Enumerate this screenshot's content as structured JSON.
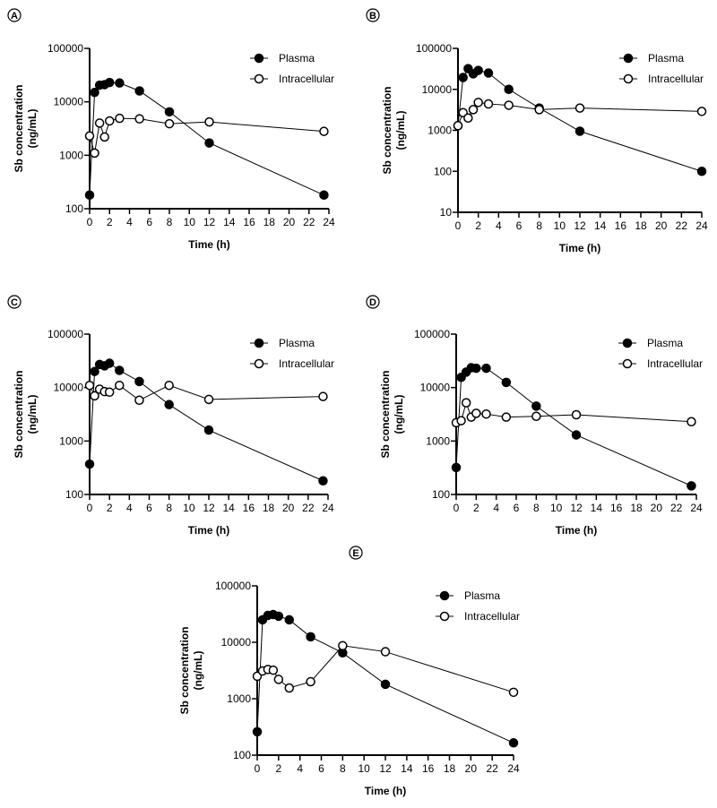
{
  "chart_data": [
    {
      "type": "line",
      "panel": "A",
      "xlabel": "Time (h)",
      "ylabel": [
        "Sb concentration",
        "(ng/mL)"
      ],
      "yscale": "log",
      "ylim": [
        100,
        100000
      ],
      "yticks": [
        "100",
        "1000",
        "10000",
        "100000"
      ],
      "xlim": [
        0,
        24
      ],
      "xticks": [
        "0",
        "2",
        "4",
        "6",
        "8",
        "10",
        "12",
        "14",
        "16",
        "18",
        "20",
        "22",
        "24"
      ],
      "legend": "top-right",
      "series": [
        {
          "name": "Plasma",
          "marker": "filled",
          "x": [
            0,
            0.5,
            1,
            1.5,
            2,
            3,
            5,
            8,
            12,
            23.5
          ],
          "y": [
            180,
            15000,
            20500,
            21000,
            23000,
            22500,
            16000,
            6500,
            1700,
            180
          ]
        },
        {
          "name": "Intracellular",
          "marker": "open",
          "x": [
            0,
            0.5,
            1,
            1.5,
            2,
            3,
            5,
            8,
            12,
            23.5
          ],
          "y": [
            2300,
            1100,
            4000,
            2200,
            4400,
            4900,
            4800,
            3900,
            4200,
            2800
          ]
        }
      ]
    },
    {
      "type": "line",
      "panel": "B",
      "xlabel": "Time (h)",
      "ylabel": [
        "Sb concentration",
        "(ng/mL)"
      ],
      "yscale": "log",
      "ylim": [
        10,
        100000
      ],
      "yticks": [
        "10",
        "100",
        "1000",
        "10000",
        "100000"
      ],
      "xlim": [
        0,
        24
      ],
      "xticks": [
        "0",
        "2",
        "4",
        "6",
        "8",
        "10",
        "12",
        "14",
        "16",
        "18",
        "20",
        "22",
        "24"
      ],
      "legend": "top-right",
      "series": [
        {
          "name": "Plasma",
          "marker": "filled",
          "x": [
            0,
            0.5,
            1,
            1.5,
            2,
            3,
            5,
            8,
            12,
            24
          ],
          "y": [
            1300,
            19500,
            32000,
            24000,
            29000,
            25000,
            10000,
            3500,
            950,
            100
          ]
        },
        {
          "name": "Intracellular",
          "marker": "open",
          "x": [
            0,
            0.5,
            1,
            1.5,
            2,
            3,
            5,
            8,
            12,
            24
          ],
          "y": [
            1300,
            2700,
            2000,
            3200,
            4800,
            4400,
            4100,
            3200,
            3500,
            2900
          ]
        }
      ]
    },
    {
      "type": "line",
      "panel": "C",
      "xlabel": "Time (h)",
      "ylabel": [
        "Sb concentration",
        "(ng/mL)"
      ],
      "yscale": "log",
      "ylim": [
        100,
        100000
      ],
      "yticks": [
        "100",
        "1000",
        "10000",
        "100000"
      ],
      "xlim": [
        0,
        24
      ],
      "xticks": [
        "0",
        "2",
        "4",
        "6",
        "8",
        "10",
        "12",
        "14",
        "16",
        "18",
        "20",
        "22",
        "24"
      ],
      "legend": "top-right",
      "series": [
        {
          "name": "Plasma",
          "marker": "filled",
          "x": [
            0,
            0.5,
            1,
            1.5,
            2,
            3,
            5,
            8,
            12,
            23.5
          ],
          "y": [
            370,
            20000,
            27000,
            25500,
            28500,
            21000,
            13000,
            4800,
            1600,
            180
          ]
        },
        {
          "name": "Intracellular",
          "marker": "open",
          "x": [
            0,
            0.5,
            1,
            1.5,
            2,
            3,
            5,
            8,
            12,
            23.5
          ],
          "y": [
            11000,
            7000,
            9300,
            8400,
            8200,
            11000,
            5800,
            11000,
            6000,
            6800
          ]
        }
      ]
    },
    {
      "type": "line",
      "panel": "D",
      "xlabel": "Time (h)",
      "ylabel": [
        "Sb concentration",
        "(ng/mL)"
      ],
      "yscale": "log",
      "ylim": [
        100,
        100000
      ],
      "yticks": [
        "100",
        "1000",
        "10000",
        "100000"
      ],
      "xlim": [
        0,
        24
      ],
      "xticks": [
        "0",
        "2",
        "4",
        "6",
        "8",
        "10",
        "12",
        "14",
        "16",
        "18",
        "20",
        "22",
        "24"
      ],
      "legend": "top-right",
      "series": [
        {
          "name": "Plasma",
          "marker": "filled",
          "x": [
            0,
            0.5,
            1,
            1.5,
            2,
            3,
            5,
            8,
            12,
            23.5
          ],
          "y": [
            320,
            15500,
            19500,
            23500,
            23000,
            23000,
            12500,
            4500,
            1300,
            145
          ]
        },
        {
          "name": "Intracellular",
          "marker": "open",
          "x": [
            0,
            0.5,
            1,
            1.5,
            2,
            3,
            5,
            8,
            12,
            23.5
          ],
          "y": [
            2200,
            2400,
            5200,
            2800,
            3300,
            3200,
            2800,
            2900,
            3100,
            2300
          ]
        }
      ]
    },
    {
      "type": "line",
      "panel": "E",
      "xlabel": "Time (h)",
      "ylabel": [
        "Sb concentration",
        "(ng/mL)"
      ],
      "yscale": "log",
      "ylim": [
        100,
        100000
      ],
      "yticks": [
        "100",
        "1000",
        "10000",
        "100000"
      ],
      "xlim": [
        0,
        24
      ],
      "xticks": [
        "0",
        "2",
        "4",
        "6",
        "8",
        "10",
        "12",
        "14",
        "16",
        "18",
        "20",
        "22",
        "24"
      ],
      "legend": "top-right",
      "series": [
        {
          "name": "Plasma",
          "marker": "filled",
          "x": [
            0,
            0.5,
            1,
            1.5,
            2,
            3,
            5,
            8,
            12,
            24
          ],
          "y": [
            260,
            25000,
            30000,
            31000,
            29000,
            25000,
            12500,
            6500,
            1800,
            165
          ]
        },
        {
          "name": "Intracellular",
          "marker": "open",
          "x": [
            0,
            0.5,
            1,
            1.5,
            2,
            3,
            5,
            8,
            12,
            24
          ],
          "y": [
            2500,
            3100,
            3300,
            3200,
            2200,
            1550,
            2000,
            8700,
            6800,
            1300
          ]
        }
      ]
    }
  ]
}
